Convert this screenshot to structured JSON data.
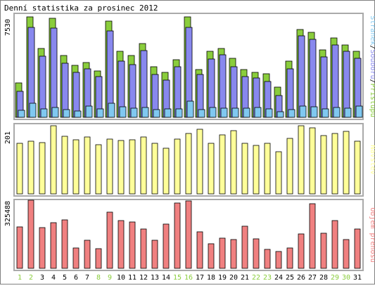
{
  "title": "Denní statistika za prosinec 2012",
  "colors": {
    "border": "#808080",
    "frame": "#aaaaaa",
    "hits": "#8acd3c",
    "files": "#8888ee",
    "pages": "#80c8f0",
    "visits": "#ffff99",
    "kbytes": "#f08080",
    "weekday_label": "#000000",
    "weekend_label": "#8acd3c"
  },
  "chart_data": [
    {
      "type": "bar",
      "name": "hits-files-pages",
      "ymax_label": "7530",
      "ylim": [
        0,
        7530
      ],
      "legend": [
        "Stránek",
        "Souborů",
        "Přístupů"
      ],
      "legend_sep": "/",
      "categories": [
        "1",
        "2",
        "3",
        "4",
        "5",
        "6",
        "7",
        "8",
        "9",
        "10",
        "11",
        "12",
        "13",
        "14",
        "15",
        "16",
        "17",
        "18",
        "19",
        "20",
        "21",
        "22",
        "23",
        "24",
        "25",
        "26",
        "27",
        "28",
        "29",
        "30",
        "31"
      ],
      "series": [
        {
          "name": "Přístupů",
          "values": [
            2500,
            7300,
            5000,
            7200,
            4500,
            3800,
            4000,
            3400,
            7000,
            4800,
            4500,
            5400,
            3700,
            3300,
            4200,
            7300,
            3500,
            4800,
            5000,
            4300,
            3500,
            3300,
            3200,
            2200,
            4100,
            6400,
            6200,
            4900,
            5800,
            5300,
            4800
          ]
        },
        {
          "name": "Souborů",
          "values": [
            1900,
            6550,
            4450,
            6500,
            3950,
            3300,
            3550,
            2950,
            6300,
            4100,
            3850,
            4850,
            3150,
            2700,
            3700,
            6550,
            3100,
            4250,
            4550,
            3700,
            2950,
            2850,
            2600,
            1600,
            3550,
            5950,
            5700,
            4400,
            5300,
            4800,
            4300
          ]
        },
        {
          "name": "Stránek",
          "values": [
            500,
            1000,
            600,
            700,
            550,
            480,
            800,
            600,
            1000,
            750,
            650,
            700,
            550,
            600,
            600,
            1200,
            550,
            700,
            650,
            650,
            650,
            700,
            600,
            400,
            550,
            800,
            750,
            600,
            700,
            650,
            800
          ]
        }
      ]
    },
    {
      "type": "bar",
      "name": "visits",
      "ymax_label": "201",
      "ylim": [
        0,
        201
      ],
      "legend": [
        "Návštěv"
      ],
      "categories": [
        "1",
        "2",
        "3",
        "4",
        "5",
        "6",
        "7",
        "8",
        "9",
        "10",
        "11",
        "12",
        "13",
        "14",
        "15",
        "16",
        "17",
        "18",
        "19",
        "20",
        "21",
        "22",
        "23",
        "24",
        "25",
        "26",
        "27",
        "28",
        "29",
        "30",
        "31"
      ],
      "series": [
        {
          "name": "Návštěv",
          "values": [
            150,
            155,
            152,
            200,
            170,
            160,
            168,
            145,
            162,
            158,
            160,
            168,
            150,
            134,
            162,
            178,
            190,
            150,
            175,
            187,
            150,
            143,
            150,
            124,
            164,
            200,
            195,
            172,
            178,
            185,
            155
          ]
        }
      ]
    },
    {
      "type": "bar",
      "name": "kbytes",
      "ymax_label": "325488",
      "ylim": [
        0,
        325488
      ],
      "legend": [
        "Objem přenosu"
      ],
      "categories": [
        "1",
        "2",
        "3",
        "4",
        "5",
        "6",
        "7",
        "8",
        "9",
        "10",
        "11",
        "12",
        "13",
        "14",
        "15",
        "16",
        "17",
        "18",
        "19",
        "20",
        "21",
        "22",
        "23",
        "24",
        "25",
        "26",
        "27",
        "28",
        "29",
        "30",
        "31"
      ],
      "series": [
        {
          "name": "Objem přenosu",
          "values": [
            200000,
            330000,
            195000,
            220000,
            235000,
            100000,
            135000,
            95000,
            270000,
            230000,
            225000,
            190000,
            135000,
            215000,
            315000,
            325000,
            178000,
            118000,
            145000,
            140000,
            205000,
            142000,
            90000,
            80000,
            100000,
            165000,
            312000,
            170000,
            230000,
            140000,
            190000
          ]
        }
      ]
    }
  ],
  "day_labels": [
    {
      "text": "1",
      "weekend": true
    },
    {
      "text": "2",
      "weekend": true
    },
    {
      "text": "3",
      "weekend": false
    },
    {
      "text": "4",
      "weekend": false
    },
    {
      "text": "5",
      "weekend": false
    },
    {
      "text": "6",
      "weekend": false
    },
    {
      "text": "7",
      "weekend": false
    },
    {
      "text": "8",
      "weekend": true
    },
    {
      "text": "9",
      "weekend": true
    },
    {
      "text": "10",
      "weekend": false
    },
    {
      "text": "11",
      "weekend": false
    },
    {
      "text": "12",
      "weekend": false
    },
    {
      "text": "13",
      "weekend": false
    },
    {
      "text": "14",
      "weekend": false
    },
    {
      "text": "15",
      "weekend": true
    },
    {
      "text": "16",
      "weekend": true
    },
    {
      "text": "17",
      "weekend": false
    },
    {
      "text": "18",
      "weekend": false
    },
    {
      "text": "19",
      "weekend": false
    },
    {
      "text": "20",
      "weekend": false
    },
    {
      "text": "21",
      "weekend": false
    },
    {
      "text": "22",
      "weekend": true
    },
    {
      "text": "23",
      "weekend": true
    },
    {
      "text": "24",
      "weekend": false
    },
    {
      "text": "25",
      "weekend": false
    },
    {
      "text": "26",
      "weekend": false
    },
    {
      "text": "27",
      "weekend": false
    },
    {
      "text": "28",
      "weekend": false
    },
    {
      "text": "29",
      "weekend": true
    },
    {
      "text": "30",
      "weekend": true
    },
    {
      "text": "31",
      "weekend": false
    }
  ]
}
